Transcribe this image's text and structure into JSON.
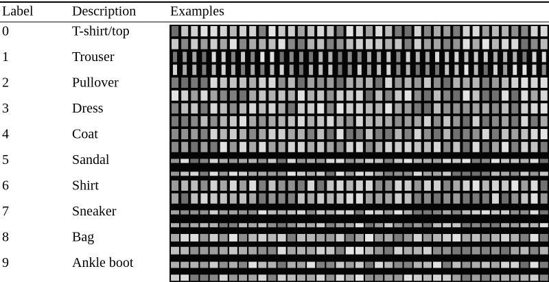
{
  "table": {
    "header": [
      "Label",
      "Description",
      "Examples"
    ],
    "rows": [
      [
        "0",
        "T-shirt/top"
      ],
      [
        "1",
        "Trouser"
      ],
      [
        "2",
        "Pullover"
      ],
      [
        "3",
        "Dress"
      ],
      [
        "4",
        "Coat"
      ],
      [
        "5",
        "Sandal"
      ],
      [
        "6",
        "Shirt"
      ],
      [
        "7",
        "Sneaker"
      ],
      [
        "8",
        "Bag"
      ],
      [
        "9",
        "Ankle boot"
      ]
    ]
  }
}
